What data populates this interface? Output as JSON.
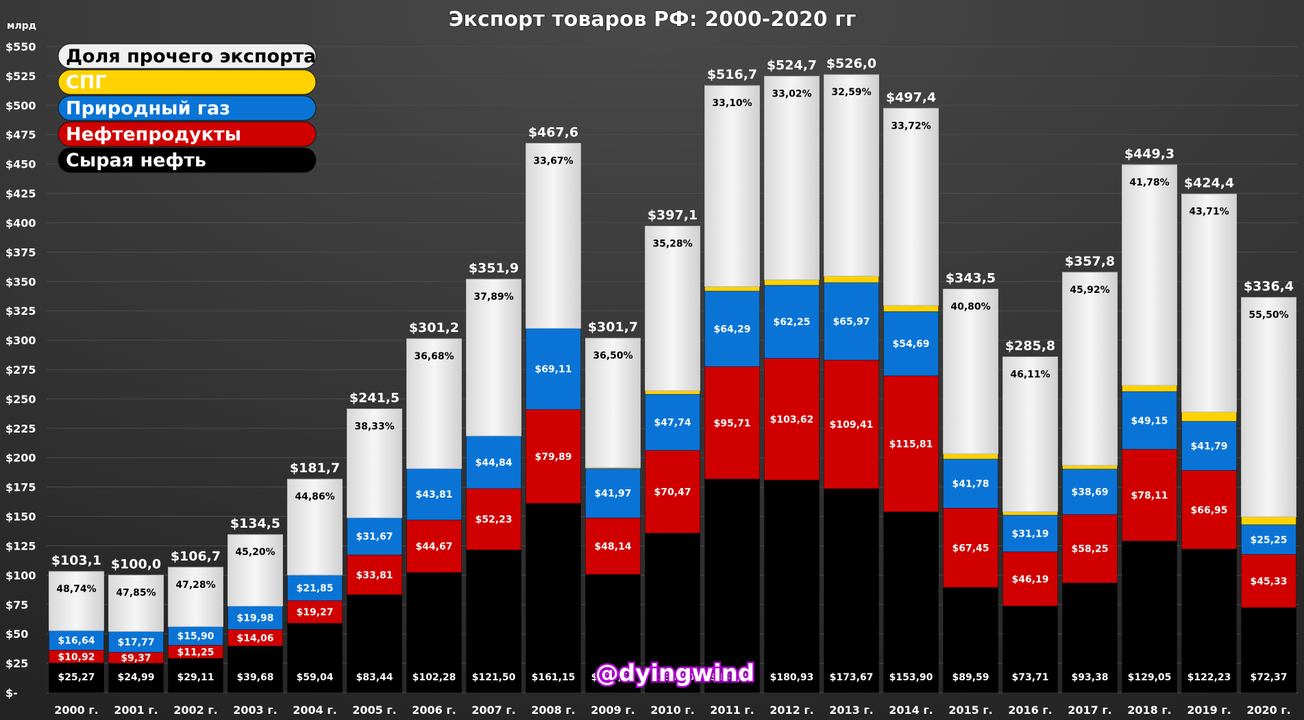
{
  "chart_data": {
    "type": "bar",
    "stacked": true,
    "title": "Экспорт товаров РФ: 2000-2020 гг",
    "ylabel": "млрд",
    "ylim": [
      0,
      550
    ],
    "ytick_step": 25,
    "ytick_labels": [
      "$-",
      "$25",
      "$50",
      "$75",
      "$100",
      "$125",
      "$150",
      "$175",
      "$200",
      "$225",
      "$250",
      "$275",
      "$300",
      "$325",
      "$350",
      "$375",
      "$400",
      "$425",
      "$450",
      "$475",
      "$500",
      "$525",
      "$550"
    ],
    "grid": true,
    "legend_position": "top-left",
    "watermark": "@dyingwind",
    "categories": [
      "2000 г.",
      "2001 г.",
      "2002 г.",
      "2003 г.",
      "2004 г.",
      "2005 г.",
      "2006 г.",
      "2007 г.",
      "2008 г.",
      "2009 г.",
      "2010 г.",
      "2011 г.",
      "2012 г.",
      "2013 г.",
      "2014 г.",
      "2015 г.",
      "2016 г.",
      "2017 г.",
      "2018 г.",
      "2019 г.",
      "2020 г."
    ],
    "totals": [
      103.1,
      100.0,
      106.7,
      134.5,
      181.7,
      241.5,
      301.2,
      351.9,
      467.6,
      301.7,
      397.1,
      516.7,
      524.7,
      526.0,
      497.4,
      343.5,
      285.8,
      357.8,
      449.3,
      424.4,
      336.4
    ],
    "total_labels": [
      "$103,1",
      "$100,0",
      "$106,7",
      "$134,5",
      "$181,7",
      "$241,5",
      "$301,2",
      "$351,9",
      "$467,6",
      "$301,7",
      "$397,1",
      "$516,7",
      "$524,7",
      "$526,0",
      "$497,4",
      "$343,5",
      "$285,8",
      "$357,8",
      "$449,3",
      "$424,4",
      "$336,4"
    ],
    "other_share_labels": [
      "48,74%",
      "47,85%",
      "47,28%",
      "45,20%",
      "44,86%",
      "38,33%",
      "36,68%",
      "37,89%",
      "33,67%",
      "36,50%",
      "35,28%",
      "33,10%",
      "33,02%",
      "32,59%",
      "33,72%",
      "40,80%",
      "46,11%",
      "45,92%",
      "41,78%",
      "43,71%",
      "55,50%"
    ],
    "series": [
      {
        "name": "Сырая нефть",
        "color": "#000000",
        "values": [
          25.27,
          24.99,
          29.11,
          39.68,
          59.04,
          83.44,
          102.28,
          121.5,
          161.15,
          100.59,
          135.8,
          181.81,
          180.93,
          173.67,
          153.9,
          89.59,
          73.71,
          93.38,
          129.05,
          122.23,
          72.37
        ],
        "labels": [
          "$25,27",
          "$24,99",
          "$29,11",
          "$39,68",
          "$59,04",
          "$83,44",
          "$102,28",
          "$121,50",
          "$161,15",
          "$100,59",
          "$135,80",
          "$181,81",
          "$180,93",
          "$173,67",
          "$153,90",
          "$89,59",
          "$73,71",
          "$93,38",
          "$129,05",
          "$122,23",
          "$72,37"
        ]
      },
      {
        "name": "Нефтепродукты",
        "color": "#d00000",
        "values": [
          10.92,
          9.37,
          11.25,
          14.06,
          19.27,
          33.81,
          44.67,
          52.23,
          79.89,
          48.14,
          70.47,
          95.71,
          103.62,
          109.41,
          115.81,
          67.45,
          46.19,
          58.25,
          78.11,
          66.95,
          45.33
        ],
        "labels": [
          "$10,92",
          "$9,37",
          "$11,25",
          "$14,06",
          "$19,27",
          "$33,81",
          "$44,67",
          "$52,23",
          "$79,89",
          "$48,14",
          "$70,47",
          "$95,71",
          "$103,62",
          "$109,41",
          "$115,81",
          "$67,45",
          "$46,19",
          "$58,25",
          "$78,11",
          "$66,95",
          "$45,33"
        ]
      },
      {
        "name": "Природный газ",
        "color": "#0a74d6",
        "values": [
          16.64,
          17.77,
          15.9,
          19.98,
          21.85,
          31.67,
          43.81,
          44.84,
          69.11,
          41.97,
          47.74,
          64.29,
          62.25,
          65.97,
          54.69,
          41.78,
          31.19,
          38.69,
          49.15,
          41.79,
          25.25
        ],
        "labels": [
          "$16,64",
          "$17,77",
          "$15,90",
          "$19,98",
          "$21,85",
          "$31,67",
          "$43,81",
          "$44,84",
          "$69,11",
          "$41,97",
          "$47,74",
          "$64,29",
          "$62,25",
          "$65,97",
          "$54,69",
          "$41,78",
          "$31,19",
          "$38,69",
          "$49,15",
          "$41,79",
          "$25,25"
        ]
      },
      {
        "name": "СПГ",
        "color": "#ffd200",
        "values": [
          0,
          0,
          0,
          0,
          0,
          0,
          0,
          0,
          0,
          0.84,
          2.99,
          3.85,
          4.68,
          5.51,
          5.24,
          4.55,
          2.9,
          3.17,
          5.29,
          7.92,
          6.75
        ],
        "labels": [
          "",
          "",
          "",
          "",
          "",
          "",
          "",
          "",
          "",
          "$0,84",
          "$2,99",
          "$3,85",
          "$4,68",
          "$5,51",
          "$5,24",
          "$4,55",
          "$2,90",
          "$3,17",
          "$5,29",
          "$7,92",
          "$6,75"
        ]
      },
      {
        "name": "Доля прочего экспорта",
        "color": "#eeeeee",
        "values": [
          50.27,
          47.87,
          50.44,
          60.78,
          81.54,
          92.58,
          110.44,
          133.33,
          157.45,
          110.16,
          140.1,
          171.04,
          173.22,
          171.44,
          167.76,
          140.13,
          131.81,
          164.31,
          187.7,
          185.51,
          186.7
        ],
        "labels": []
      }
    ],
    "legend": [
      "Доля прочего экспорта",
      "СПГ",
      "Природный газ",
      "Нефтепродукты",
      "Сырая нефть"
    ]
  }
}
